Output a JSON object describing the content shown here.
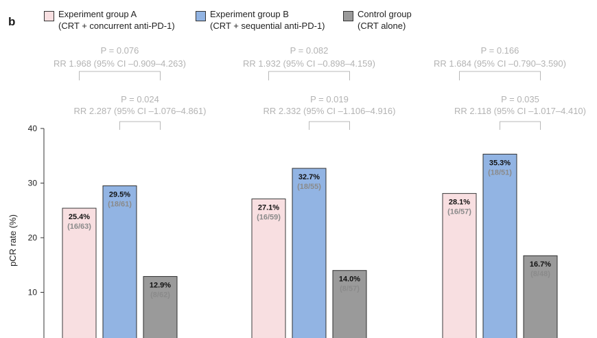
{
  "panel_label": "b",
  "legend": [
    {
      "line1": "Experiment group A",
      "line2": "(CRT + concurrent anti-PD-1)",
      "color": "#f8dfe1"
    },
    {
      "line1": "Experiment group B",
      "line2": "(CRT + sequential anti-PD-1)",
      "color": "#92b4e3"
    },
    {
      "line1": "Control group",
      "line2": "(CRT alone)",
      "color": "#9a9a9a"
    }
  ],
  "chart_data": {
    "type": "bar",
    "ylabel": "pCR rate (%)",
    "yticks": [
      10,
      20,
      30,
      40
    ],
    "ylim": [
      0,
      40
    ],
    "series": [
      {
        "name": "Experiment group A",
        "color": "#f8dfe1"
      },
      {
        "name": "Experiment group B",
        "color": "#92b4e3"
      },
      {
        "name": "Control group",
        "color": "#9a9a9a"
      }
    ],
    "groups": [
      {
        "bars": [
          {
            "value": 25.4,
            "label": "25.4%",
            "fraction": "(16/63)"
          },
          {
            "value": 29.5,
            "label": "29.5%",
            "fraction": "(18/61)"
          },
          {
            "value": 12.9,
            "label": "12.9%",
            "fraction": "(8/62)"
          }
        ],
        "comparisons": [
          {
            "p": "P = 0.076",
            "rr": "RR 1.968 (95% CI –0.909–4.263)"
          },
          {
            "p": "P = 0.024",
            "rr": "RR 2.287 (95% CI –1.076–4.861)"
          }
        ]
      },
      {
        "bars": [
          {
            "value": 27.1,
            "label": "27.1%",
            "fraction": "(16/59)"
          },
          {
            "value": 32.7,
            "label": "32.7%",
            "fraction": "(18/55)"
          },
          {
            "value": 14.0,
            "label": "14.0%",
            "fraction": "(8/57)"
          }
        ],
        "comparisons": [
          {
            "p": "P = 0.082",
            "rr": "RR 1.932 (95% CI –0.898–4.159)"
          },
          {
            "p": "P = 0.019",
            "rr": "RR 2.332 (95% CI –1.106–4.916)"
          }
        ]
      },
      {
        "bars": [
          {
            "value": 28.1,
            "label": "28.1%",
            "fraction": "(16/57)"
          },
          {
            "value": 35.3,
            "label": "35.3%",
            "fraction": "(18/51)"
          },
          {
            "value": 16.7,
            "label": "16.7%",
            "fraction": "(8/48)"
          }
        ],
        "comparisons": [
          {
            "p": "P = 0.166",
            "rr": "RR 1.684 (95% CI –0.790–3.590)"
          },
          {
            "p": "P = 0.035",
            "rr": "RR 2.118 (95% CI –1.017–4.410)"
          }
        ]
      }
    ]
  }
}
